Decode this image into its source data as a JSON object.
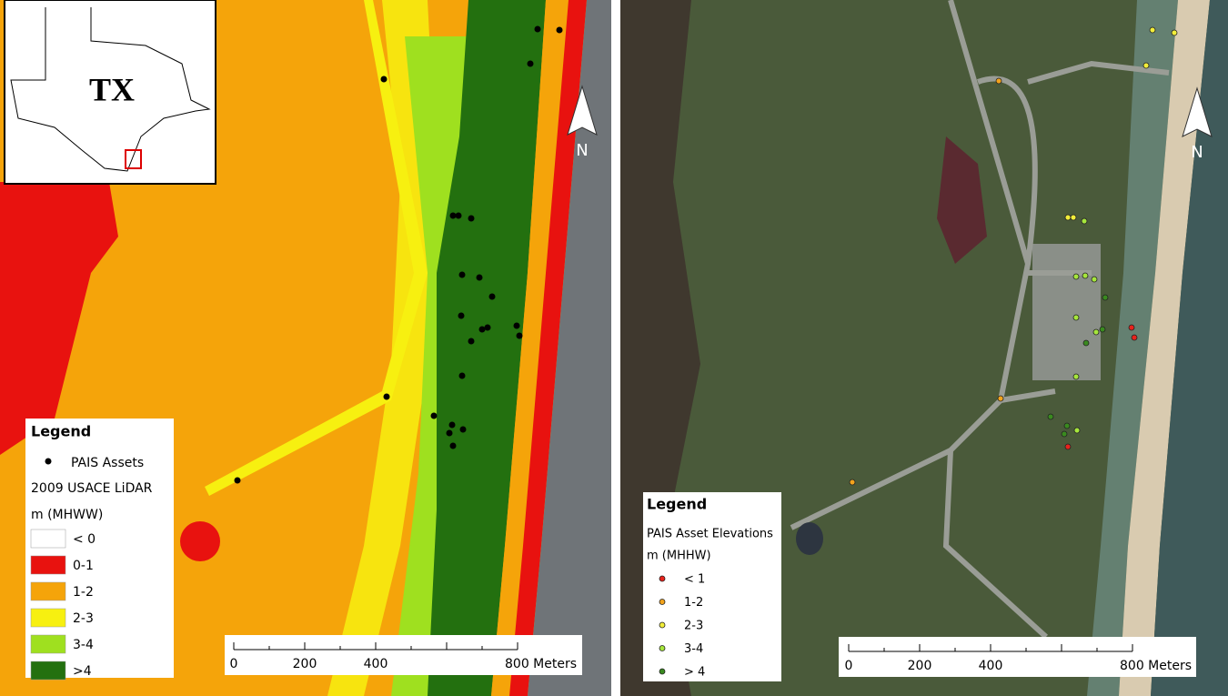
{
  "left_map": {
    "inset_label": "TX",
    "north": "N",
    "legend": {
      "title": "Legend",
      "asset_label": "PAIS Assets",
      "layer_label": "2009 USACE LiDAR",
      "unit_label": "m (MHWW)",
      "classes": [
        {
          "label": "< 0",
          "color": "#ffffff"
        },
        {
          "label": "0-1",
          "color": "#e8120f"
        },
        {
          "label": "1-2",
          "color": "#f5a40a"
        },
        {
          "label": "2-3",
          "color": "#f7f010"
        },
        {
          "label": "3-4",
          "color": "#9fe01f"
        },
        {
          "label": ">4",
          "color": "#23700f"
        }
      ]
    },
    "scale_labels": [
      "0",
      "200",
      "400",
      "800 Meters"
    ]
  },
  "right_map": {
    "north": "N",
    "legend": {
      "title": "Legend",
      "layer_label": "PAIS Asset Elevations",
      "unit_label": "m (MHHW)",
      "classes": [
        {
          "label": "< 1",
          "color": "#e8231c"
        },
        {
          "label": "1-2",
          "color": "#f2a31c"
        },
        {
          "label": "2-3",
          "color": "#f2ee3a"
        },
        {
          "label": "3-4",
          "color": "#a6e63c"
        },
        {
          "label": "> 4",
          "color": "#3a8a1f"
        }
      ]
    },
    "scale_labels": [
      "0",
      "200",
      "400",
      "800 Meters"
    ]
  }
}
